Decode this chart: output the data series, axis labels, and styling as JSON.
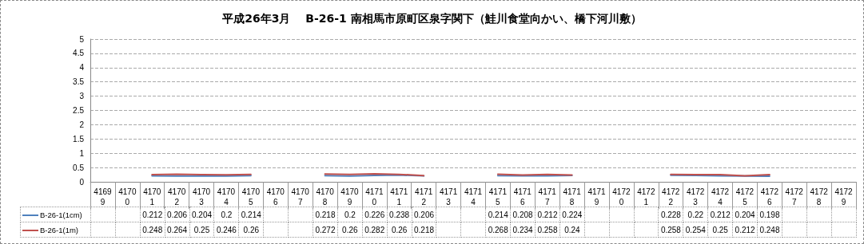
{
  "chart_data": {
    "type": "line",
    "title": "平成26年3月　 B-26-1 南相馬市原町区泉字関下（鮭川食堂向かい、橋下河川敷）",
    "categories": [
      "41699",
      "41700",
      "41701",
      "41702",
      "41703",
      "41704",
      "41705",
      "41706",
      "41707",
      "41708",
      "41709",
      "41710",
      "41711",
      "41712",
      "41713",
      "41714",
      "41715",
      "41716",
      "41717",
      "41718",
      "41719",
      "41720",
      "41721",
      "41722",
      "41723",
      "41724",
      "41725",
      "41726",
      "41727",
      "41728",
      "41729"
    ],
    "series": [
      {
        "name": "B-26-1(1cm)",
        "color": "#4f81bd",
        "values": [
          null,
          null,
          0.212,
          0.206,
          0.204,
          0.2,
          0.214,
          null,
          null,
          0.218,
          0.2,
          0.226,
          0.238,
          0.206,
          null,
          null,
          0.214,
          0.208,
          0.212,
          0.224,
          null,
          null,
          null,
          0.228,
          0.22,
          0.212,
          0.204,
          0.198,
          null,
          null,
          null
        ]
      },
      {
        "name": "B-26-1(1m)",
        "color": "#c0504d",
        "values": [
          null,
          null,
          0.248,
          0.264,
          0.25,
          0.246,
          0.26,
          null,
          null,
          0.272,
          0.26,
          0.282,
          0.26,
          0.218,
          null,
          null,
          0.268,
          0.234,
          0.258,
          0.24,
          null,
          null,
          null,
          0.258,
          0.254,
          0.25,
          0.212,
          0.248,
          null,
          null,
          null
        ]
      }
    ],
    "ylim": [
      0,
      5
    ],
    "yticks": [
      0,
      0.5,
      1,
      1.5,
      2,
      2.5,
      3,
      3.5,
      4,
      4.5,
      5
    ],
    "grid": "y",
    "legend": "bottom left",
    "marker": "none",
    "line_style": "solid",
    "data_labels": true
  }
}
